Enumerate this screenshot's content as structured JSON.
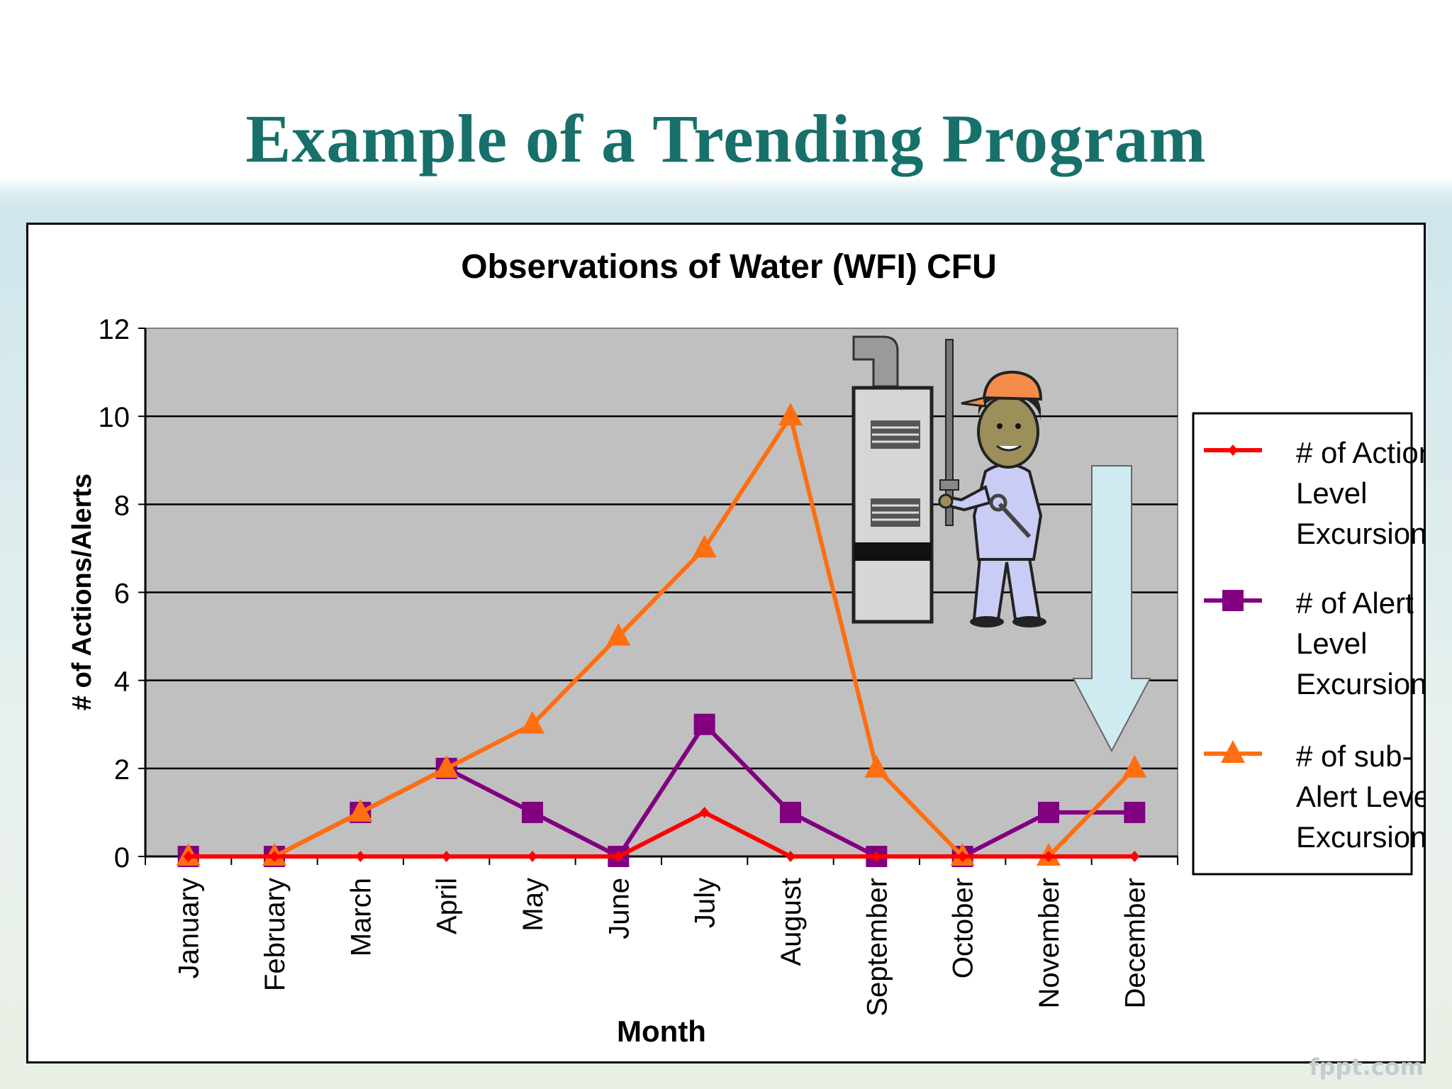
{
  "slide": {
    "title": "Example of a Trending Program",
    "watermark": "fppt.com"
  },
  "chart_data": {
    "type": "line",
    "title": "Observations of Water (WFI) CFU",
    "xlabel": "Month",
    "ylabel": "# of Actions/Alerts",
    "ylim": [
      0,
      12
    ],
    "yticks": [
      0,
      2,
      4,
      6,
      8,
      10,
      12
    ],
    "grid": true,
    "legend_placement": "right",
    "plot_background": "#c0c0c0",
    "categories": [
      "January",
      "February",
      "March",
      "April",
      "May",
      "June",
      "July",
      "August",
      "September",
      "October",
      "November",
      "December"
    ],
    "series": [
      {
        "name": "# of Action Level Excursions",
        "legend_lines": [
          "# of Action",
          "Level",
          "Excursions"
        ],
        "color": "#ff0000",
        "marker": "diamond",
        "values": [
          0,
          0,
          0,
          0,
          0,
          0,
          1,
          0,
          0,
          0,
          0,
          0
        ]
      },
      {
        "name": "# of Alert Level Excursions",
        "legend_lines": [
          "# of Alert",
          "Level",
          "Excursions"
        ],
        "color": "#800080",
        "marker": "square",
        "values": [
          0,
          0,
          1,
          2,
          1,
          0,
          3,
          1,
          0,
          0,
          1,
          1
        ]
      },
      {
        "name": "# of sub-Alert Level Excursions",
        "legend_lines": [
          "# of sub-",
          "Alert Level",
          "Excursions"
        ],
        "color": "#ff6e0f",
        "marker": "triangle",
        "values": [
          0,
          0,
          1,
          2,
          3,
          5,
          7,
          10,
          2,
          0,
          0,
          2
        ]
      }
    ],
    "annotation": {
      "arrow_direction": "down",
      "arrow_color": "#cfeaf0",
      "clipart": "technician-with-furnace"
    }
  }
}
